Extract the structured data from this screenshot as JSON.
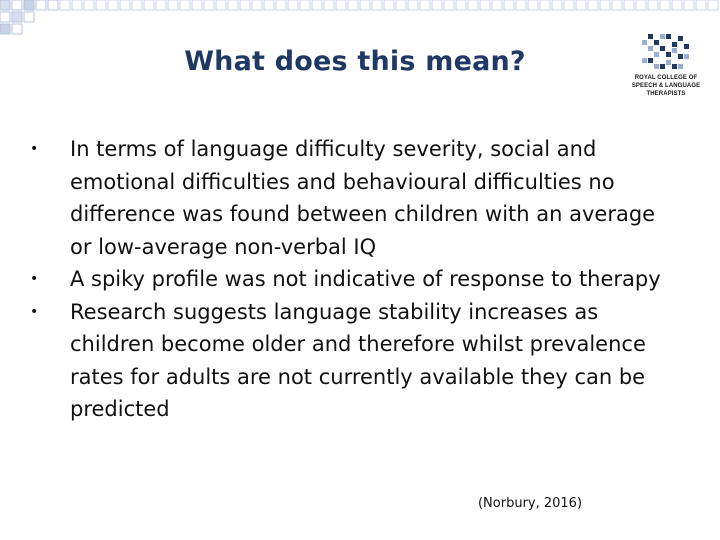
{
  "slide": {
    "title": "What does this mean?",
    "logo": {
      "line1": "ROYAL COLLEGE OF",
      "line2": "SPEECH & LANGUAGE",
      "line3": "THERAPISTS"
    },
    "bullets": [
      "In terms of language difficulty severity, social and emotional difficulties and behavioural difficulties no difference was found between children with an average or low-average non-verbal IQ",
      "A spiky profile was not indicative of response to therapy",
      "Research suggests language stability increases as children become older and therefore whilst prevalence rates for adults are not currently available they can be predicted"
    ],
    "citation": "(Norbury, 2016)",
    "colors": {
      "title": "#1f3864",
      "deco_squares": "#b7c3dd",
      "logo_dark": "#1f3864",
      "logo_light": "#9aaed1"
    }
  }
}
